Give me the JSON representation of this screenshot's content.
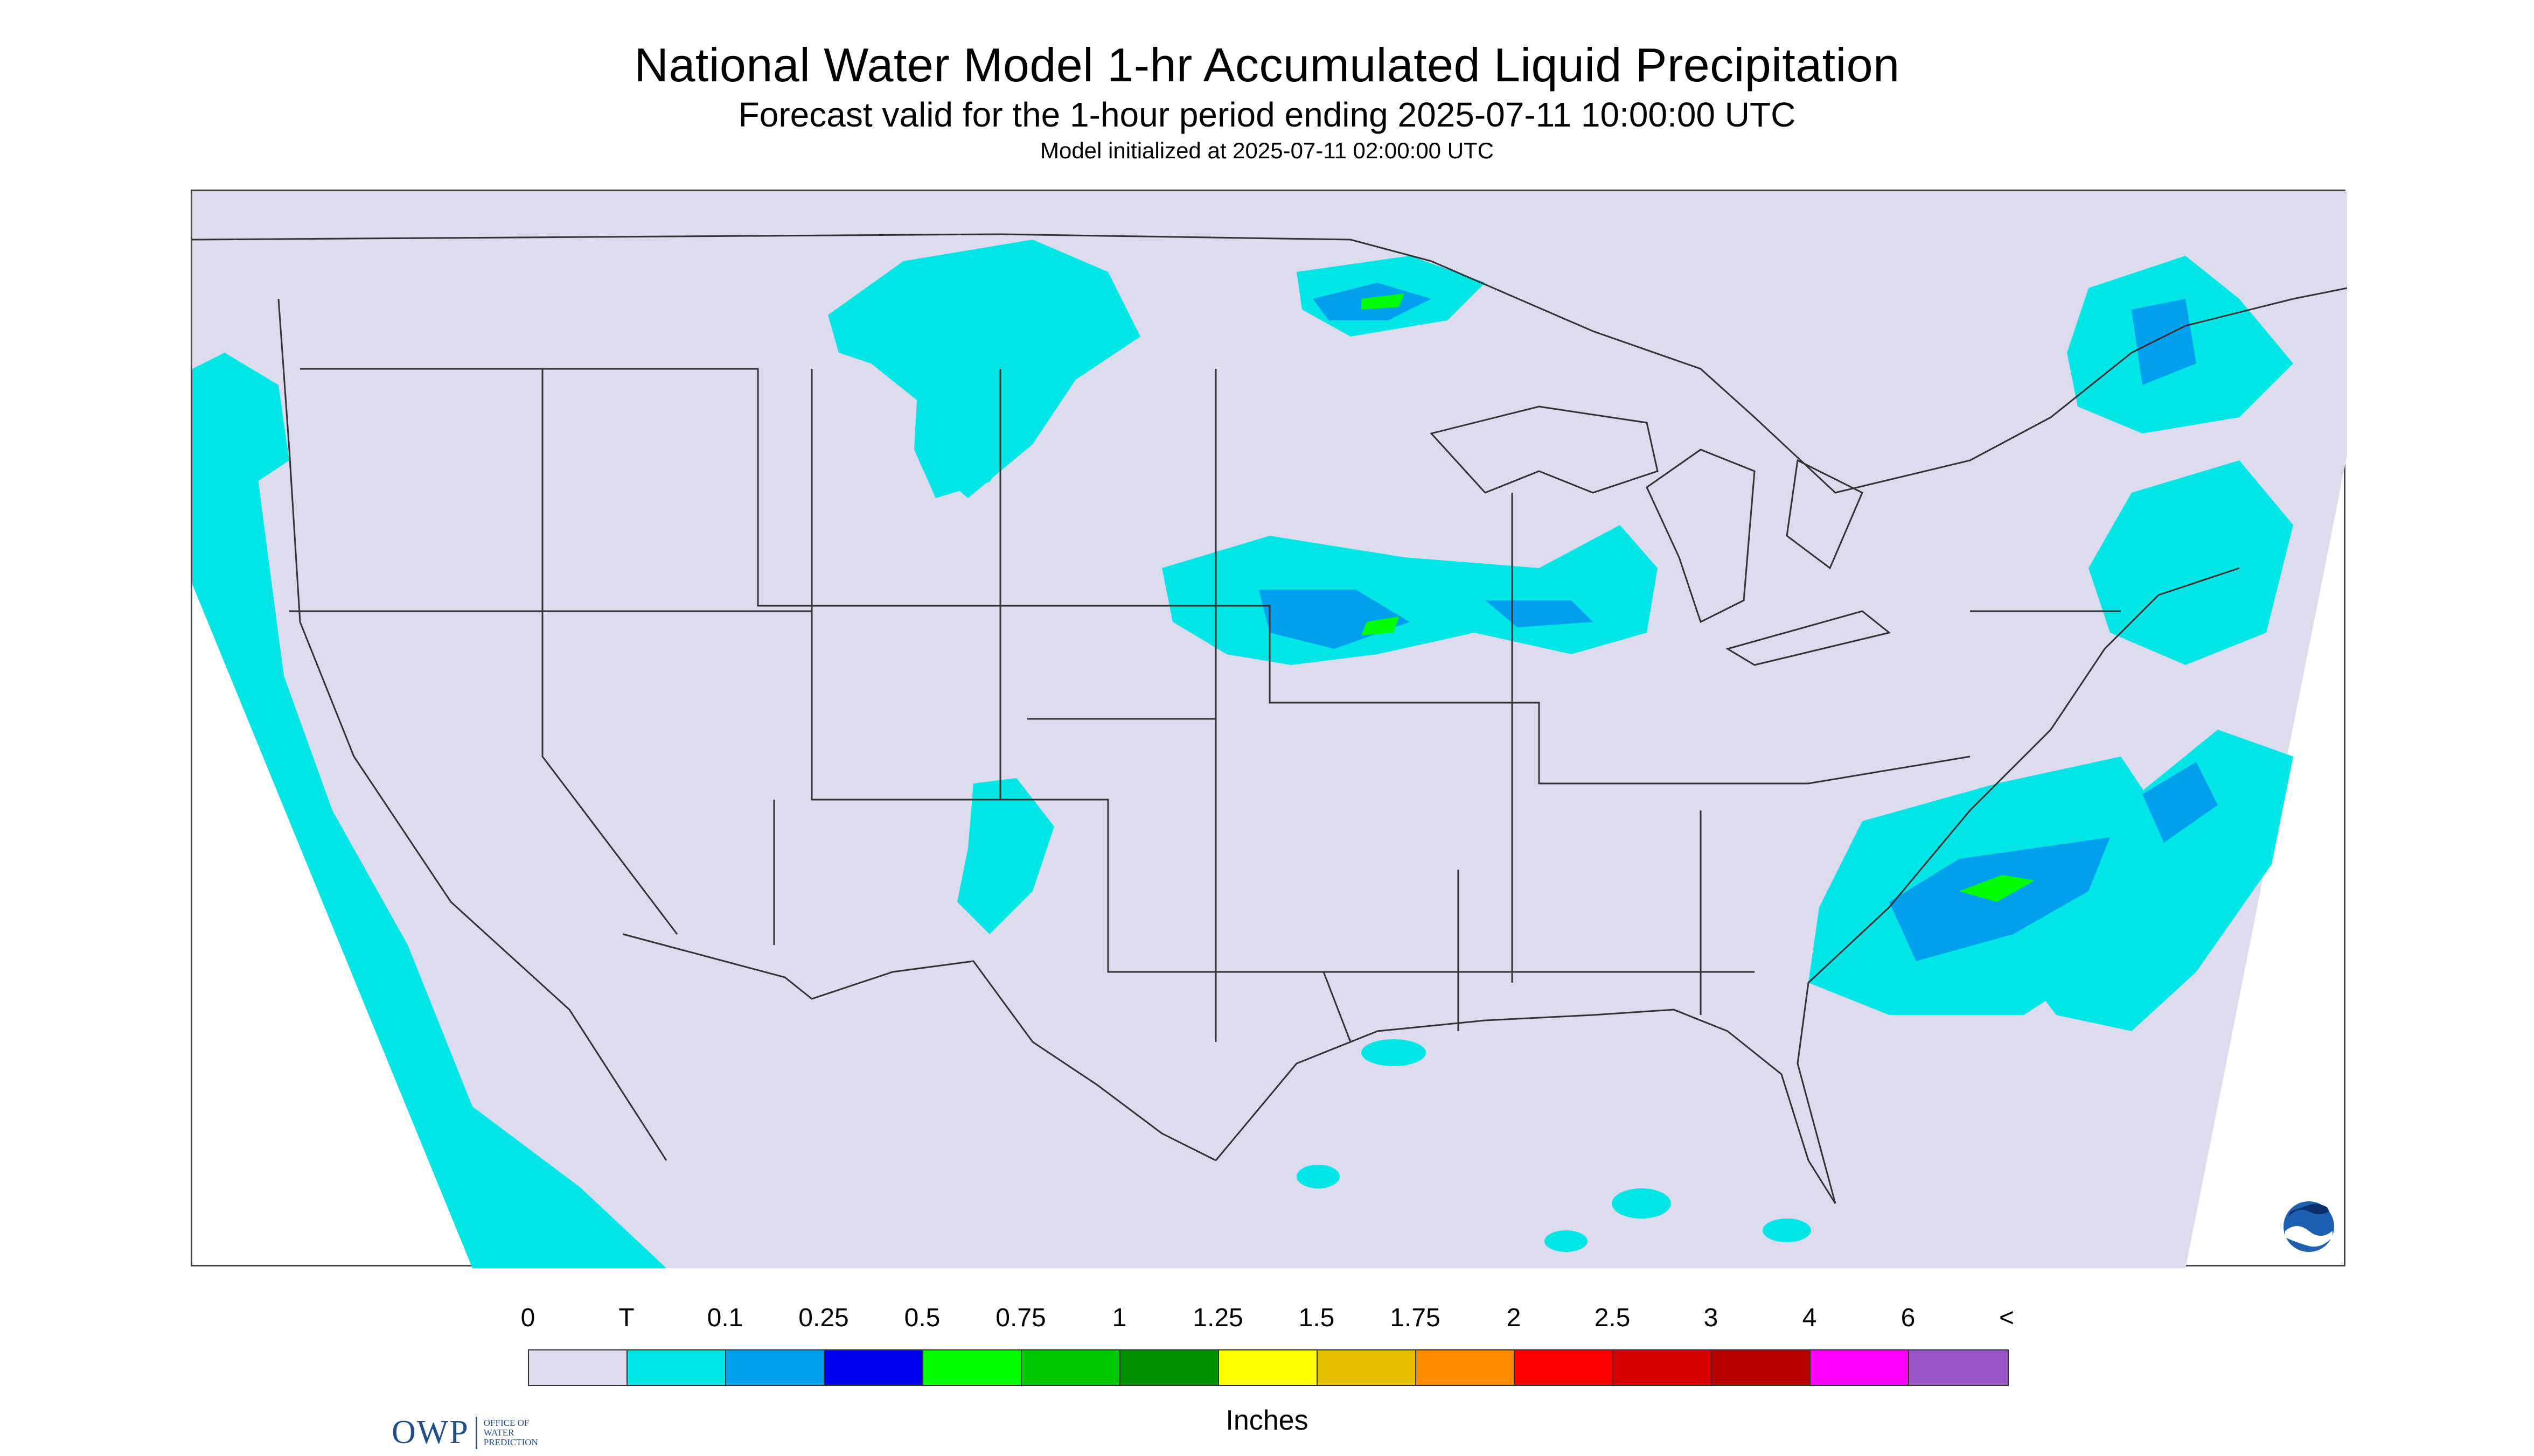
{
  "title": "National Water Model 1-hr Accumulated Liquid Precipitation",
  "subtitle": "Forecast valid for the 1-hour period ending 2025-07-11 10:00:00 UTC",
  "init_line": "Model initialized at 2025-07-11 02:00:00 UTC",
  "map": {
    "background_color": "#dcdcee",
    "outside_color": "#ffffff",
    "border_color": "#333333",
    "logo_left": {
      "mark": "OWP",
      "line1": "OFFICE OF",
      "line2": "WATER",
      "line3": "PREDICTION",
      "color": "#1f4e8c"
    },
    "logo_right": "noaa-logo-icon"
  },
  "legend": {
    "labels": [
      "0",
      "T",
      "0.1",
      "0.25",
      "0.5",
      "0.75",
      "1",
      "1.25",
      "1.5",
      "1.75",
      "2",
      "2.5",
      "3",
      "4",
      "6",
      "<"
    ],
    "colors": [
      "#dcdcee",
      "#00e5e5",
      "#00a0ee",
      "#0000f0",
      "#00ff00",
      "#00c800",
      "#009000",
      "#ffff00",
      "#e6c000",
      "#ff8c00",
      "#ff0000",
      "#d80000",
      "#b80000",
      "#ff00ff",
      "#9955c8"
    ],
    "units": "Inches"
  }
}
